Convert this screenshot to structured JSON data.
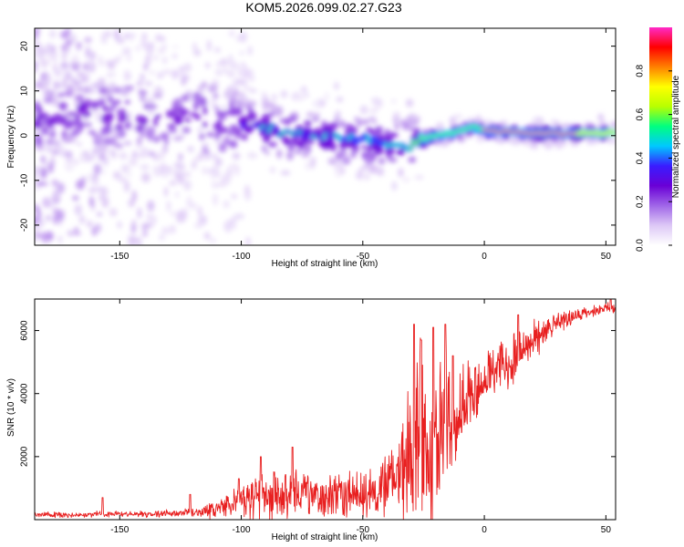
{
  "title": "KOM5.2026.099.02.27.G23",
  "chart_data": [
    {
      "type": "heatmap",
      "title": "KOM5.2026.099.02.27.G23",
      "xlabel": "Height of straight line (km)",
      "ylabel": "Frequency (Hz)",
      "xlim": [
        -185,
        54
      ],
      "ylim": [
        -24.5,
        24
      ],
      "xticks": [
        -150,
        -100,
        -50,
        0,
        50
      ],
      "yticks": [
        20,
        10,
        0,
        -10,
        -20
      ],
      "xtick_labels": [
        "-150",
        "-100",
        "-50",
        "0",
        "50"
      ],
      "ytick_labels": [
        "20",
        "10",
        "0",
        "-10",
        "-20"
      ],
      "ridge": {
        "x": [
          -185,
          -165,
          -150,
          -130,
          -110,
          -100,
          -90,
          -80,
          -70,
          -60,
          -50,
          -40,
          -35,
          -30,
          -25,
          -20,
          -10,
          -5,
          0,
          10,
          20,
          30,
          40,
          54
        ],
        "frequency": [
          3.5,
          5,
          4,
          4.5,
          3,
          2.5,
          1.5,
          0.5,
          0,
          -0.5,
          -1,
          -2,
          -2.5,
          -2,
          -1,
          0,
          1,
          2,
          1,
          0.8,
          0.6,
          0.5,
          0.6,
          0.7
        ]
      },
      "colorbar": {
        "label": "Normalized spectral amplitude",
        "range": [
          0,
          1
        ],
        "ticks": [
          0.0,
          0.2,
          0.4,
          0.6,
          0.8
        ],
        "tick_labels": [
          "0.0",
          "0.2",
          "0.4",
          "0.6",
          "0.8"
        ],
        "stops": [
          "#ffffff",
          "#ddc8f6",
          "#a066e8",
          "#6a00d6",
          "#3a1cff",
          "#00c8ff",
          "#00ff80",
          "#b8ff00",
          "#ffff00",
          "#ff8000",
          "#ff0000",
          "#ff2ac8"
        ]
      }
    },
    {
      "type": "line",
      "xlabel": "Height of straight line (km)",
      "ylabel": "SNR (10 * v/v)",
      "xlim": [
        -185,
        54
      ],
      "ylim": [
        0,
        7000
      ],
      "xticks": [
        -150,
        -100,
        -50,
        0,
        50
      ],
      "yticks": [
        2000,
        4000,
        6000
      ],
      "xtick_labels": [
        "-150",
        "-100",
        "-50",
        "0",
        "50"
      ],
      "ytick_labels": [
        "2000",
        "4000",
        "6000"
      ],
      "series": [
        {
          "name": "SNR",
          "color": "#e82020",
          "x": [
            -185,
            -170,
            -160,
            -150,
            -140,
            -130,
            -120,
            -110,
            -105,
            -100,
            -95,
            -90,
            -85,
            -80,
            -75,
            -70,
            -65,
            -60,
            -55,
            -50,
            -45,
            -40,
            -35,
            -33,
            -31,
            -29,
            -27,
            -25,
            -23,
            -21,
            -19,
            -17,
            -15,
            -13,
            -10,
            -7,
            -5,
            -3,
            0,
            3,
            6,
            9,
            12,
            15,
            20,
            25,
            30,
            35,
            40,
            45,
            50,
            54
          ],
          "baseline": [
            150,
            150,
            160,
            170,
            180,
            200,
            220,
            300,
            400,
            550,
            650,
            700,
            700,
            720,
            720,
            700,
            700,
            750,
            780,
            800,
            900,
            1000,
            1400,
            1700,
            2000,
            2300,
            2400,
            2100,
            2000,
            2000,
            2500,
            2800,
            3000,
            3200,
            3500,
            3700,
            3900,
            4100,
            4400,
            4600,
            4800,
            5000,
            5100,
            5300,
            5600,
            5900,
            6200,
            6400,
            6500,
            6600,
            6700,
            6700
          ],
          "spread": [
            80,
            80,
            80,
            80,
            90,
            100,
            120,
            300,
            400,
            500,
            700,
            700,
            800,
            700,
            700,
            650,
            650,
            700,
            700,
            700,
            800,
            900,
            1200,
            1500,
            2000,
            2500,
            3000,
            2500,
            2500,
            2500,
            2500,
            2000,
            1800,
            1500,
            1200,
            1200,
            1000,
            1000,
            900,
            800,
            800,
            900,
            900,
            800,
            600,
            400,
            300,
            250,
            200,
            180,
            150,
            150
          ],
          "spikes": [
            {
              "x": -157,
              "y": 700
            },
            {
              "x": -121,
              "y": 800
            },
            {
              "x": -101,
              "y": 1300
            },
            {
              "x": -92,
              "y": 2000
            },
            {
              "x": -79,
              "y": 2300
            },
            {
              "x": -29,
              "y": 6200
            },
            {
              "x": -26,
              "y": 5700
            },
            {
              "x": -21,
              "y": 6100
            },
            {
              "x": -16,
              "y": 6200
            },
            {
              "x": -13,
              "y": 5200
            },
            {
              "x": 14,
              "y": 6500
            },
            {
              "x": 52,
              "y": 7000
            }
          ]
        }
      ]
    }
  ]
}
